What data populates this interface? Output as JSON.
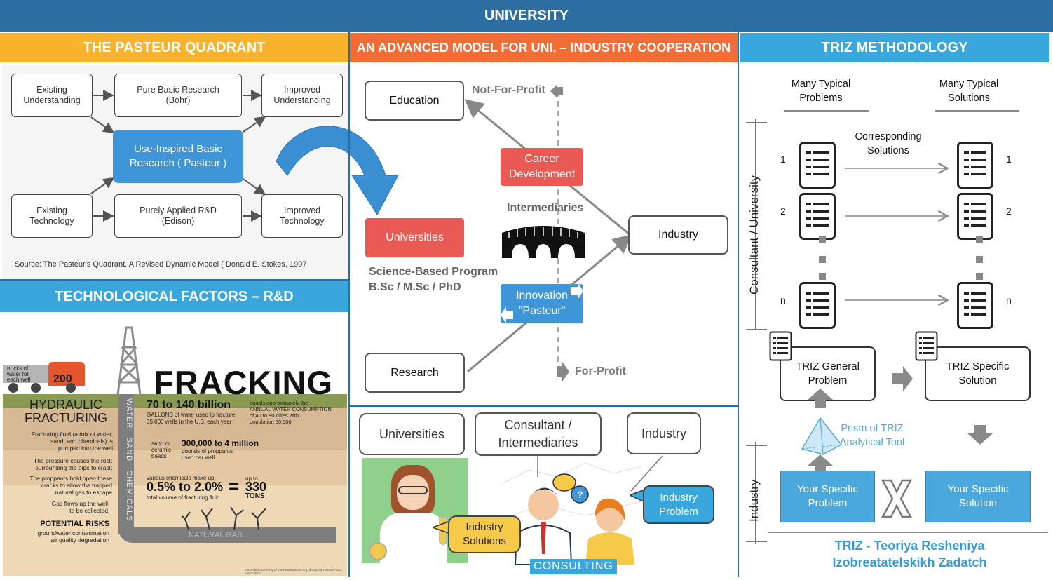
{
  "header": {
    "title": "UNIVERSITY"
  },
  "pasteur": {
    "title": "THE PASTEUR QUADRANT",
    "existing_understanding": "Existing\nUnderstanding",
    "pure_basic": "Pure Basic Research\n(Bohr)",
    "improved_understanding": "Improved\nUnderstanding",
    "use_inspired": "Use-Inspired Basic\nResearch ( Pasteur )",
    "existing_technology": "Existing\nTechnology",
    "purely_applied": "Purely Applied R&D\n(Edison)",
    "improved_technology": "Improved\nTechnology",
    "source": "Source: The Pasteur's Quadrant. A Revised Dynamic Model ( Donald E. Stokes, 1997"
  },
  "tech": {
    "title": "TECHNOLOGICAL FACTORS – R&D",
    "fracking": "FRACKING",
    "trucks": "trucks of\nwater for\neach well",
    "truck_count": "200",
    "hydraulic": "HYDRAULIC\nFRACTURING",
    "well_label": "WATER   SAND   CHEMICALS",
    "fluid_desc": "Fracturing fluid (a mix of water,\nsand, and chemicals) is\npumped into the well",
    "pressure_desc": "The pressure causes the rock\nsurrounding the pipe to crack",
    "proppants_desc": "The proppants hold open these\ncracks to allow the trapped\nnatural gas to escape",
    "gas_desc": "Gas flows up the well\nto be collected",
    "risks_title": "POTENTIAL RISKS",
    "risks_desc": "groundwater contamination\nair quality degradation",
    "billion": "70 to 140 billion",
    "billion_desc": "GALLONS of water used to fracture\n35,000 wells in the U.S. each year",
    "equals_desc": "equals approximately the\nANNUAL WATER CONSUMPTION\nof 40 to 80 cities with\npopulation 50,000",
    "proppants_small": "sand or\nceramic\nbeads",
    "million": "300,000 to 4 million",
    "million_desc": "pounds of proppants\nused per well",
    "chem_intro": "various chemicals make up",
    "percent": "0.5% to 2.0%",
    "percent_desc": "total volume of fracturing fluid",
    "equals_sign": "=",
    "upto": "up to",
    "tons_value": "330",
    "tons": "TONS",
    "natural_gas": "NATURAL GAS",
    "credit": "Information courtesy of Earthworksaction.org, design by Hannah Otto, March 2013"
  },
  "model": {
    "title": "AN ADVANCED MODEL FOR UNI. – INDUSTRY COOPERATION",
    "education": "Education",
    "not_for_profit": "Not-For-Profit",
    "career": "Career\nDevelopment",
    "intermediaries": "Intermediaries",
    "industry": "Industry",
    "universities": "Universities",
    "science_program": "Science-Based Program\nB.Sc / M.Sc / PhD",
    "innovation": "Innovation\n\"Pasteur\"",
    "research": "Research",
    "for_profit": "For-Profit"
  },
  "consult": {
    "universities": "Universities",
    "consultant": "Consultant /\nIntermediaries",
    "industry": "Industry",
    "industry_solutions": "Industry\nSolutions",
    "industry_problem": "Industry\nProblem",
    "consulting": "CONSULTING"
  },
  "triz": {
    "title": "TRIZ METHODOLOGY",
    "many_problems": "Many Typical\nProblems",
    "many_solutions": "Many Typical\nSolutions",
    "corresponding": "Corresponding\nSolutions",
    "num_1": "1",
    "num_2": "2",
    "num_n": "n",
    "consultant_axis": "Consultant / University",
    "industry_axis": "Industry",
    "general_problem": "TRIZ General\nProblem",
    "specific_solution": "TRIZ Specific\nSolution",
    "prism": "Prism of TRIZ\nAnalytical Tool",
    "your_problem": "Your Specific\nProblem",
    "your_solution": "Your Specific\nSolution",
    "footer": "TRIZ - Teoriya Resheniya\nIzobreatatelskikh Zadatch"
  },
  "colors": {
    "header": "#2c6ea0",
    "orange_yellow": "#f7b32b",
    "orange": "#f26d36",
    "blue": "#3aa7dc",
    "red": "#e85a53",
    "triz_text": "#3a9bd5"
  }
}
